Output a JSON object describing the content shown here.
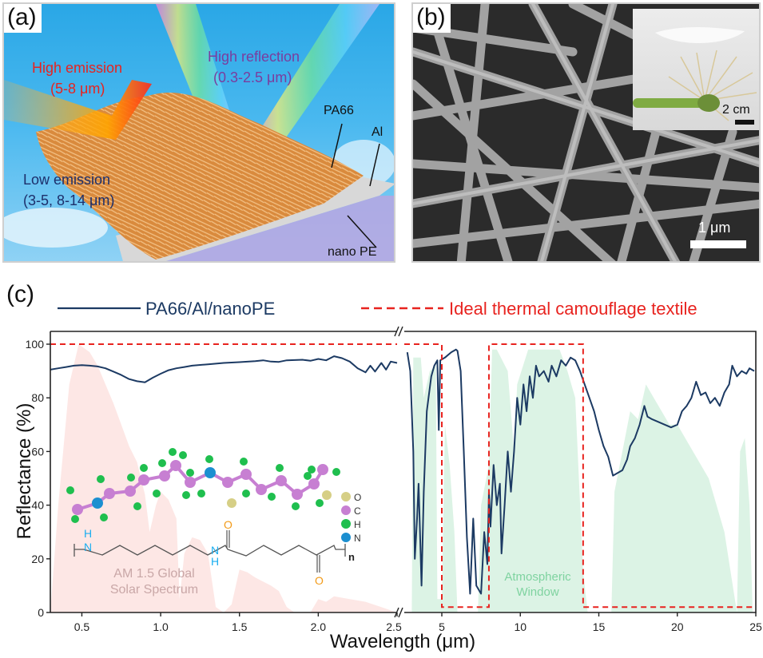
{
  "panel_a": {
    "label": "(a)",
    "high_emission": "High emission",
    "high_emission_range": "(5-8 μm)",
    "high_reflection": "High reflection",
    "high_reflection_range": "(0.3-2.5 μm)",
    "low_emission": "Low emission",
    "low_emission_range": "(3-5, 8-14 μm)",
    "layers": [
      "PA66",
      "Al",
      "nano PE"
    ],
    "colors": {
      "high_emission": "#e8231f",
      "high_reflection": "#7a3d9e",
      "low_emission": "#1d2f6b"
    }
  },
  "panel_b": {
    "label": "(b)",
    "scale_bar": "1 μm",
    "inset_scale_bar": "2 cm"
  },
  "panel_c": {
    "label": "(c)"
  },
  "chart_data": {
    "type": "line",
    "title": "",
    "xlabel": "Wavelength (μm)",
    "ylabel": "Reflectance (%)",
    "ylim": [
      0,
      100
    ],
    "yticks": [
      "0",
      "20",
      "40",
      "60",
      "80",
      "100"
    ],
    "broken_axis": true,
    "x_segments": [
      {
        "range": [
          0.3,
          2.5
        ],
        "ticks": [
          "0.5",
          "1.0",
          "1.5",
          "2.0",
          "2.5"
        ],
        "tick_values": [
          0.5,
          1.0,
          1.5,
          2.0,
          2.5
        ]
      },
      {
        "range": [
          2.5,
          25
        ],
        "ticks": [
          "5",
          "10",
          "15",
          "20",
          "25"
        ],
        "tick_values": [
          5,
          10,
          15,
          20,
          25
        ]
      }
    ],
    "legend": {
      "placement": "top",
      "entries": [
        {
          "label": "PA66/Al/nanoPE",
          "style": "solid",
          "color": "#1c3a63"
        },
        {
          "label": "Ideal thermal camouflage textile",
          "style": "dashed",
          "color": "#e8231f"
        }
      ]
    },
    "series": [
      {
        "name": "PA66/Al/nanoPE",
        "color": "#1c3a63",
        "points": [
          [
            0.3,
            90.5
          ],
          [
            0.35,
            91
          ],
          [
            0.4,
            91.5
          ],
          [
            0.45,
            92
          ],
          [
            0.5,
            92.2
          ],
          [
            0.55,
            92
          ],
          [
            0.6,
            91.7
          ],
          [
            0.65,
            91
          ],
          [
            0.7,
            89.8
          ],
          [
            0.75,
            88.5
          ],
          [
            0.8,
            87
          ],
          [
            0.85,
            86.2
          ],
          [
            0.9,
            85.8
          ],
          [
            0.95,
            87.5
          ],
          [
            1.0,
            89
          ],
          [
            1.05,
            90.3
          ],
          [
            1.1,
            91
          ],
          [
            1.15,
            91.5
          ],
          [
            1.2,
            92
          ],
          [
            1.3,
            92.5
          ],
          [
            1.4,
            93
          ],
          [
            1.5,
            93.3
          ],
          [
            1.6,
            93.7
          ],
          [
            1.65,
            94
          ],
          [
            1.7,
            93.5
          ],
          [
            1.75,
            93.4
          ],
          [
            1.8,
            94
          ],
          [
            1.9,
            94.2
          ],
          [
            1.95,
            93.8
          ],
          [
            2.0,
            94.5
          ],
          [
            2.05,
            94
          ],
          [
            2.1,
            95.5
          ],
          [
            2.15,
            94.8
          ],
          [
            2.2,
            93.5
          ],
          [
            2.25,
            91
          ],
          [
            2.3,
            89.5
          ],
          [
            2.33,
            92
          ],
          [
            2.36,
            89.8
          ],
          [
            2.4,
            93
          ],
          [
            2.43,
            90.5
          ],
          [
            2.46,
            93.5
          ],
          [
            2.5,
            93
          ],
          [
            2.7,
            97
          ],
          [
            2.9,
            90
          ],
          [
            3.1,
            60
          ],
          [
            3.2,
            20
          ],
          [
            3.35,
            35
          ],
          [
            3.45,
            48
          ],
          [
            3.55,
            30
          ],
          [
            3.65,
            10
          ],
          [
            3.8,
            45
          ],
          [
            4.0,
            75
          ],
          [
            4.3,
            88
          ],
          [
            4.5,
            92
          ],
          [
            4.7,
            94
          ],
          [
            4.8,
            68
          ],
          [
            4.9,
            94
          ],
          [
            5.2,
            95
          ],
          [
            5.6,
            97
          ],
          [
            5.9,
            98
          ],
          [
            6.0,
            97.5
          ],
          [
            6.2,
            90
          ],
          [
            6.4,
            60
          ],
          [
            6.6,
            28
          ],
          [
            6.8,
            7
          ],
          [
            7.0,
            35
          ],
          [
            7.2,
            10
          ],
          [
            7.5,
            7
          ],
          [
            7.7,
            30
          ],
          [
            7.9,
            18
          ],
          [
            8.0,
            45
          ],
          [
            8.1,
            32
          ],
          [
            8.3,
            55
          ],
          [
            8.5,
            40
          ],
          [
            8.7,
            48
          ],
          [
            8.8,
            22
          ],
          [
            9.0,
            40
          ],
          [
            9.2,
            60
          ],
          [
            9.4,
            45
          ],
          [
            9.6,
            60
          ],
          [
            9.8,
            80
          ],
          [
            10.0,
            70
          ],
          [
            10.2,
            85
          ],
          [
            10.4,
            75
          ],
          [
            10.6,
            88
          ],
          [
            10.8,
            80
          ],
          [
            11.0,
            92
          ],
          [
            11.2,
            88
          ],
          [
            11.5,
            90
          ],
          [
            11.8,
            86
          ],
          [
            12.0,
            92
          ],
          [
            12.3,
            88
          ],
          [
            12.6,
            94
          ],
          [
            12.9,
            92
          ],
          [
            13.2,
            95
          ],
          [
            13.5,
            94
          ],
          [
            13.8,
            90
          ],
          [
            14.1,
            85
          ],
          [
            14.4,
            80
          ],
          [
            14.7,
            75
          ],
          [
            15.0,
            68
          ],
          [
            15.3,
            62
          ],
          [
            15.6,
            58
          ],
          [
            15.9,
            51
          ],
          [
            16.2,
            52
          ],
          [
            16.5,
            53
          ],
          [
            16.8,
            57
          ],
          [
            17.0,
            62
          ],
          [
            17.3,
            65
          ],
          [
            17.6,
            70
          ],
          [
            17.9,
            77
          ],
          [
            18.1,
            73
          ],
          [
            18.4,
            72
          ],
          [
            18.8,
            71
          ],
          [
            19.2,
            70
          ],
          [
            19.6,
            69
          ],
          [
            20.0,
            70
          ],
          [
            20.3,
            75
          ],
          [
            20.6,
            77
          ],
          [
            20.9,
            80
          ],
          [
            21.2,
            86
          ],
          [
            21.5,
            81
          ],
          [
            21.8,
            82
          ],
          [
            22.1,
            78
          ],
          [
            22.4,
            80
          ],
          [
            22.7,
            77
          ],
          [
            23.0,
            82
          ],
          [
            23.3,
            85
          ],
          [
            23.5,
            92
          ],
          [
            23.8,
            88
          ],
          [
            24.1,
            90
          ],
          [
            24.4,
            89
          ],
          [
            24.6,
            91
          ],
          [
            24.9,
            90
          ]
        ]
      },
      {
        "name": "Ideal thermal camouflage textile",
        "color": "#e8231f",
        "style": "dashed",
        "points": [
          [
            0.3,
            100
          ],
          [
            2.5,
            100
          ],
          [
            5.0,
            100
          ],
          [
            5.0,
            2
          ],
          [
            8.0,
            2
          ],
          [
            8.0,
            100
          ],
          [
            14.0,
            100
          ],
          [
            14.0,
            2
          ],
          [
            25,
            2
          ]
        ]
      }
    ],
    "annotations": [
      {
        "text": "AM 1.5 Global",
        "color": "#c9a7a7"
      },
      {
        "text": "Solar Spectrum",
        "color": "#c9a7a7"
      },
      {
        "text": "Atmospheric",
        "color": "#7fd3a0"
      },
      {
        "text": "Window",
        "color": "#7fd3a0"
      }
    ],
    "background_spectra": [
      {
        "name": "AM 1.5 Global Solar Spectrum",
        "color": "#fde3e1",
        "points": [
          [
            0.3,
            0
          ],
          [
            0.35,
            40
          ],
          [
            0.42,
            85
          ],
          [
            0.48,
            100
          ],
          [
            0.55,
            97
          ],
          [
            0.6,
            92
          ],
          [
            0.65,
            85
          ],
          [
            0.7,
            78
          ],
          [
            0.75,
            70
          ],
          [
            0.8,
            62
          ],
          [
            0.85,
            56
          ],
          [
            0.9,
            44
          ],
          [
            0.93,
            30
          ],
          [
            0.97,
            40
          ],
          [
            1.0,
            45
          ],
          [
            1.05,
            42
          ],
          [
            1.1,
            35
          ],
          [
            1.12,
            5
          ],
          [
            1.15,
            22
          ],
          [
            1.2,
            28
          ],
          [
            1.25,
            27
          ],
          [
            1.3,
            22
          ],
          [
            1.35,
            2
          ],
          [
            1.4,
            0
          ],
          [
            1.45,
            3
          ],
          [
            1.5,
            16
          ],
          [
            1.55,
            15
          ],
          [
            1.6,
            13
          ],
          [
            1.7,
            10
          ],
          [
            1.75,
            8
          ],
          [
            1.8,
            2
          ],
          [
            1.85,
            0
          ],
          [
            1.95,
            0
          ],
          [
            2.0,
            5
          ],
          [
            2.05,
            4
          ],
          [
            2.1,
            6
          ],
          [
            2.2,
            5
          ],
          [
            2.3,
            4
          ],
          [
            2.4,
            2
          ],
          [
            2.5,
            0
          ]
        ]
      },
      {
        "name": "Atmospheric Window",
        "color": "#d6f1e0",
        "points": [
          [
            2.5,
            0
          ],
          [
            3.0,
            0
          ],
          [
            3.1,
            95
          ],
          [
            3.6,
            95
          ],
          [
            3.8,
            80
          ],
          [
            4.2,
            90
          ],
          [
            4.6,
            92
          ],
          [
            4.7,
            5
          ],
          [
            5.0,
            5
          ],
          [
            5.2,
            70
          ],
          [
            5.5,
            55
          ],
          [
            5.8,
            30
          ],
          [
            6.0,
            0
          ],
          [
            7.3,
            0
          ],
          [
            7.5,
            40
          ],
          [
            8.0,
            55
          ],
          [
            8.2,
            98
          ],
          [
            8.5,
            98
          ],
          [
            9.2,
            90
          ],
          [
            9.6,
            60
          ],
          [
            9.8,
            85
          ],
          [
            10.5,
            98
          ],
          [
            12.5,
            98
          ],
          [
            13.0,
            90
          ],
          [
            13.5,
            80
          ],
          [
            14.0,
            15
          ],
          [
            14.3,
            0
          ],
          [
            15.8,
            0
          ],
          [
            16.0,
            45
          ],
          [
            16.5,
            60
          ],
          [
            17.0,
            75
          ],
          [
            17.5,
            72
          ],
          [
            18.0,
            85
          ],
          [
            18.5,
            80
          ],
          [
            19.0,
            75
          ],
          [
            19.5,
            70
          ],
          [
            20.0,
            70
          ],
          [
            21.0,
            60
          ],
          [
            22.0,
            50
          ],
          [
            23.0,
            30
          ],
          [
            23.8,
            0
          ],
          [
            24.0,
            60
          ],
          [
            24.3,
            65
          ],
          [
            24.6,
            40
          ],
          [
            24.8,
            0
          ]
        ]
      }
    ],
    "molecule_legend": [
      {
        "element": "O",
        "color": "#d6cf86"
      },
      {
        "element": "C",
        "color": "#c77fd2"
      },
      {
        "element": "H",
        "color": "#1fbf4e"
      },
      {
        "element": "N",
        "color": "#1c8fd0"
      }
    ],
    "structure_formula": {
      "repeat_subscript": "n",
      "atom_labels": [
        "H",
        "N",
        "N",
        "H",
        "O",
        "O"
      ],
      "colors": {
        "N": "#1aaef0",
        "O": "#f29a17"
      }
    }
  }
}
